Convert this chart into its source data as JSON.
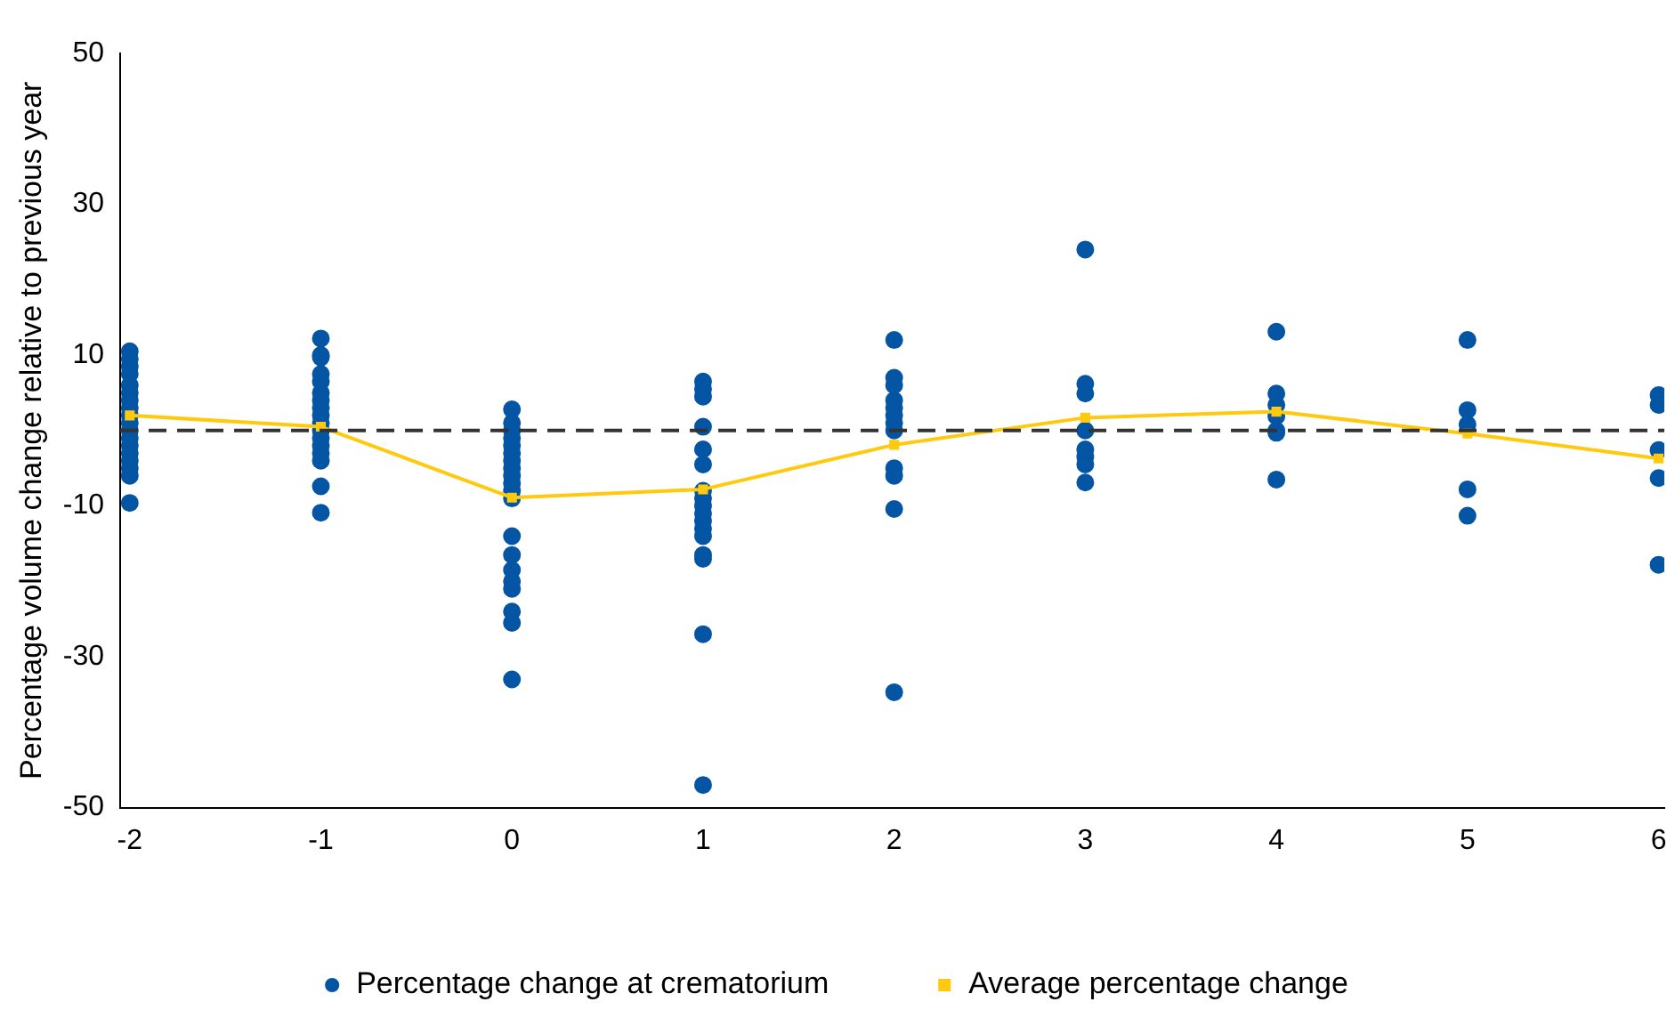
{
  "chart_data": {
    "type": "scatter",
    "ylabel": "Percentage volume change relative to previous year",
    "xlim": [
      -2.05,
      6.03
    ],
    "xticks": [
      -2,
      -1,
      0,
      1,
      2,
      3,
      4,
      5,
      6
    ],
    "ylim": [
      -50,
      50
    ],
    "yticks": [
      -50,
      -30,
      -10,
      10,
      30,
      50
    ],
    "grid": false,
    "legend": "bottom",
    "series": [
      {
        "name": "Percentage change at crematorium",
        "color": "#0455a4",
        "marker": "circle",
        "x": [
          -2,
          -2,
          -2,
          -2,
          -2,
          -2,
          -2,
          -2,
          -2,
          -2,
          -2,
          -2,
          -2,
          -2,
          -2,
          -2,
          -2,
          -2,
          -1,
          -1,
          -1,
          -1,
          -1,
          -1,
          -1,
          -1,
          -1,
          -1,
          -1,
          -1,
          -1,
          -1,
          -1,
          -1,
          -1,
          0,
          0,
          0,
          0,
          0,
          0,
          0,
          0,
          0,
          0,
          0,
          0,
          0,
          0,
          0,
          0,
          0,
          0,
          0,
          0,
          1,
          1,
          1,
          1,
          1,
          1,
          1,
          1,
          1,
          1,
          1,
          1,
          1,
          1,
          1,
          1,
          1,
          2,
          2,
          2,
          2,
          2,
          2,
          2,
          2,
          2,
          2,
          2,
          2,
          3,
          3,
          3,
          3,
          3,
          3,
          3,
          3,
          4,
          4,
          4,
          4,
          4,
          4,
          4,
          5,
          5,
          5,
          5,
          5,
          6,
          6,
          6,
          6,
          6
        ],
        "values": [
          10.5,
          9.5,
          8.5,
          7.5,
          6,
          5,
          4,
          3,
          2,
          1,
          0,
          -1,
          -2,
          -3,
          -4,
          -5,
          -6,
          -9.6,
          12.2,
          10,
          9.7,
          7.5,
          6.5,
          5,
          4,
          3,
          2,
          1,
          0,
          -1,
          -2,
          -3,
          -4,
          -7.4,
          -10.9,
          2.8,
          1,
          0,
          -1,
          -2,
          -3,
          -4,
          -5,
          -6,
          -7,
          -8,
          -9,
          -14,
          -16.5,
          -18.5,
          -20,
          -21,
          -24,
          -25.5,
          -33,
          6.5,
          5.5,
          4.5,
          0.5,
          -2.5,
          -4.5,
          -8,
          -9,
          -10,
          -11,
          -12,
          -13,
          -14,
          -16.5,
          -17,
          -27,
          -47,
          12,
          7,
          6,
          4,
          3,
          2,
          1,
          0,
          -5,
          -6,
          -10.4,
          -34.7,
          24,
          6.2,
          4.9,
          0,
          -2.5,
          -3.5,
          -4.5,
          -6.9,
          13.1,
          4.9,
          3.4,
          1.9,
          0,
          -0.3,
          -6.5,
          12,
          2.7,
          0.8,
          -7.8,
          -11.3,
          4.7,
          3.4,
          -2.6,
          -6.3,
          -17.8
        ]
      },
      {
        "name": "Average percentage change",
        "type": "line",
        "color": "#ffc90e",
        "marker": "square",
        "line_style": "solid",
        "x": [
          -2,
          -1,
          0,
          1,
          2,
          3,
          4,
          5,
          6
        ],
        "values": [
          2.0,
          0.5,
          -8.9,
          -7.8,
          -1.9,
          1.7,
          2.5,
          -0.4,
          -3.7
        ]
      }
    ],
    "ref_lines": [
      {
        "axis": "y",
        "value": 0,
        "color": "#333333",
        "line_style": "dashed"
      }
    ]
  }
}
